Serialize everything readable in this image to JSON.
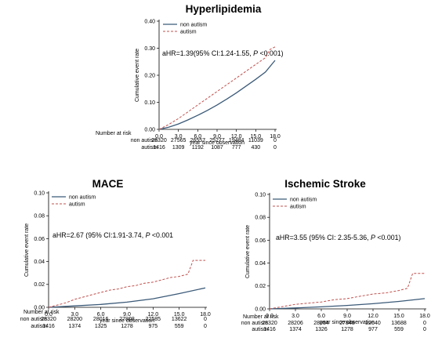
{
  "chart_data": [
    {
      "type": "line",
      "title": "Hyperlipidemia",
      "xlabel": "year since observation",
      "ylabel": "Cumulative event rate",
      "xlim": [
        0,
        18
      ],
      "ylim": [
        0,
        0.4
      ],
      "x_ticks": [
        "0.0",
        "3.0",
        "6.0",
        "9.0",
        "12.0",
        "15.0",
        "18.0"
      ],
      "y_ticks": [
        "0.00",
        "0.10",
        "0.20",
        "0.30",
        "0.40"
      ],
      "legend_position": "top-left",
      "annotation_main": "aHR=1.39(95% CI:1.24-1.55, ",
      "annotation_p": "P",
      "annotation_tail": " <0.001)",
      "series": [
        {
          "name": "non autism",
          "color": "#3b5a78",
          "style": "solid",
          "x": [
            0,
            1.5,
            3,
            4.5,
            6,
            7.5,
            9,
            10.5,
            12,
            13.5,
            15,
            16.5,
            18
          ],
          "y": [
            0,
            0.008,
            0.02,
            0.035,
            0.052,
            0.07,
            0.09,
            0.112,
            0.135,
            0.16,
            0.185,
            0.212,
            0.255
          ]
        },
        {
          "name": "autism",
          "color": "#c0504d",
          "style": "dashed",
          "x": [
            0,
            1.5,
            3,
            4.5,
            6,
            7.5,
            9,
            10.5,
            12,
            13.5,
            15,
            16.5,
            17.2,
            18
          ],
          "y": [
            0,
            0.018,
            0.04,
            0.065,
            0.09,
            0.115,
            0.14,
            0.165,
            0.19,
            0.215,
            0.24,
            0.265,
            0.295,
            0.305
          ]
        }
      ],
      "risk_table": {
        "header": "Number at risk",
        "rows": [
          {
            "label": "non autism",
            "values": [
              "28320",
              "27565",
              "26557",
              "25277",
              "19484",
              "11039",
              "0"
            ]
          },
          {
            "label": "autism",
            "values": [
              "1416",
              "1309",
              "1192",
              "1087",
              "777",
              "430",
              "0"
            ]
          }
        ]
      }
    },
    {
      "type": "line",
      "title": "MACE",
      "xlabel": "year since observation",
      "ylabel": "Cumulative event rate",
      "xlim": [
        0,
        18
      ],
      "ylim": [
        0,
        0.1
      ],
      "x_ticks": [
        "0.0",
        "3.0",
        "6.0",
        "9.0",
        "12.0",
        "15.0",
        "18.0"
      ],
      "y_ticks": [
        "0.00",
        "0.02",
        "0.04",
        "0.06",
        "0.08",
        "0.10"
      ],
      "legend_position": "top-left",
      "annotation_main": "aHR=2.67 (95% CI:1.91-3.74, ",
      "annotation_p": "P",
      "annotation_tail": " <0.001",
      "series": [
        {
          "name": "non autism",
          "color": "#3b5a78",
          "style": "solid",
          "x": [
            0,
            3,
            6,
            9,
            12,
            15,
            18
          ],
          "y": [
            0,
            0.0012,
            0.0025,
            0.0045,
            0.0075,
            0.012,
            0.017
          ]
        },
        {
          "name": "autism",
          "color": "#c0504d",
          "style": "dashed",
          "x": [
            0,
            1,
            2,
            3,
            4,
            5,
            6,
            7,
            8,
            9,
            10,
            11,
            12,
            13,
            14,
            15,
            16,
            16.6,
            17.4,
            18
          ],
          "y": [
            0,
            0.002,
            0.004,
            0.007,
            0.009,
            0.011,
            0.013,
            0.015,
            0.016,
            0.018,
            0.019,
            0.021,
            0.022,
            0.024,
            0.026,
            0.027,
            0.029,
            0.041,
            0.041,
            0.041
          ]
        }
      ],
      "risk_table": {
        "header": "Number at risk",
        "rows": [
          {
            "label": "non autism",
            "values": [
              "28320",
              "28200",
              "28016",
              "27808",
              "22585",
              "13622",
              "0"
            ]
          },
          {
            "label": "autism",
            "values": [
              "1416",
              "1374",
              "1325",
              "1278",
              "975",
              "559",
              "0"
            ]
          }
        ]
      }
    },
    {
      "type": "line",
      "title": "Ischemic Stroke",
      "xlabel": "year since observation",
      "ylabel": "Cumulative event rate",
      "xlim": [
        0,
        18
      ],
      "ylim": [
        0,
        0.1
      ],
      "x_ticks": [
        "0.0",
        "3.0",
        "6.0",
        "9.0",
        "12.0",
        "15.0",
        "18.0"
      ],
      "y_ticks": [
        "0.00",
        "0.02",
        "0.04",
        "0.06",
        "0.08",
        "0.10"
      ],
      "legend_position": "top-left",
      "annotation_main": "aHR=3.55 (95% CI: 2.35-5.36, ",
      "annotation_p": "P",
      "annotation_tail": " <0.001)",
      "series": [
        {
          "name": "non autism",
          "color": "#3b5a78",
          "style": "solid",
          "x": [
            0,
            3,
            6,
            9,
            12,
            15,
            18
          ],
          "y": [
            0,
            0.0008,
            0.0018,
            0.003,
            0.0045,
            0.0065,
            0.009
          ]
        },
        {
          "name": "autism",
          "color": "#c0504d",
          "style": "dashed",
          "x": [
            0,
            1.5,
            3,
            4.5,
            6,
            7.5,
            9,
            10.5,
            12,
            13.5,
            15,
            16,
            16.6,
            17.3,
            18
          ],
          "y": [
            0,
            0.002,
            0.004,
            0.005,
            0.006,
            0.008,
            0.009,
            0.011,
            0.013,
            0.014,
            0.016,
            0.018,
            0.031,
            0.031,
            0.031
          ]
        }
      ],
      "risk_table": {
        "header": "Number at risk",
        "rows": [
          {
            "label": "non autism",
            "values": [
              "28320",
              "28206",
              "28034",
              "27848",
              "22640",
              "13688",
              "0"
            ]
          },
          {
            "label": "autism",
            "values": [
              "1416",
              "1374",
              "1326",
              "1278",
              "977",
              "559",
              "0"
            ]
          }
        ]
      }
    }
  ]
}
